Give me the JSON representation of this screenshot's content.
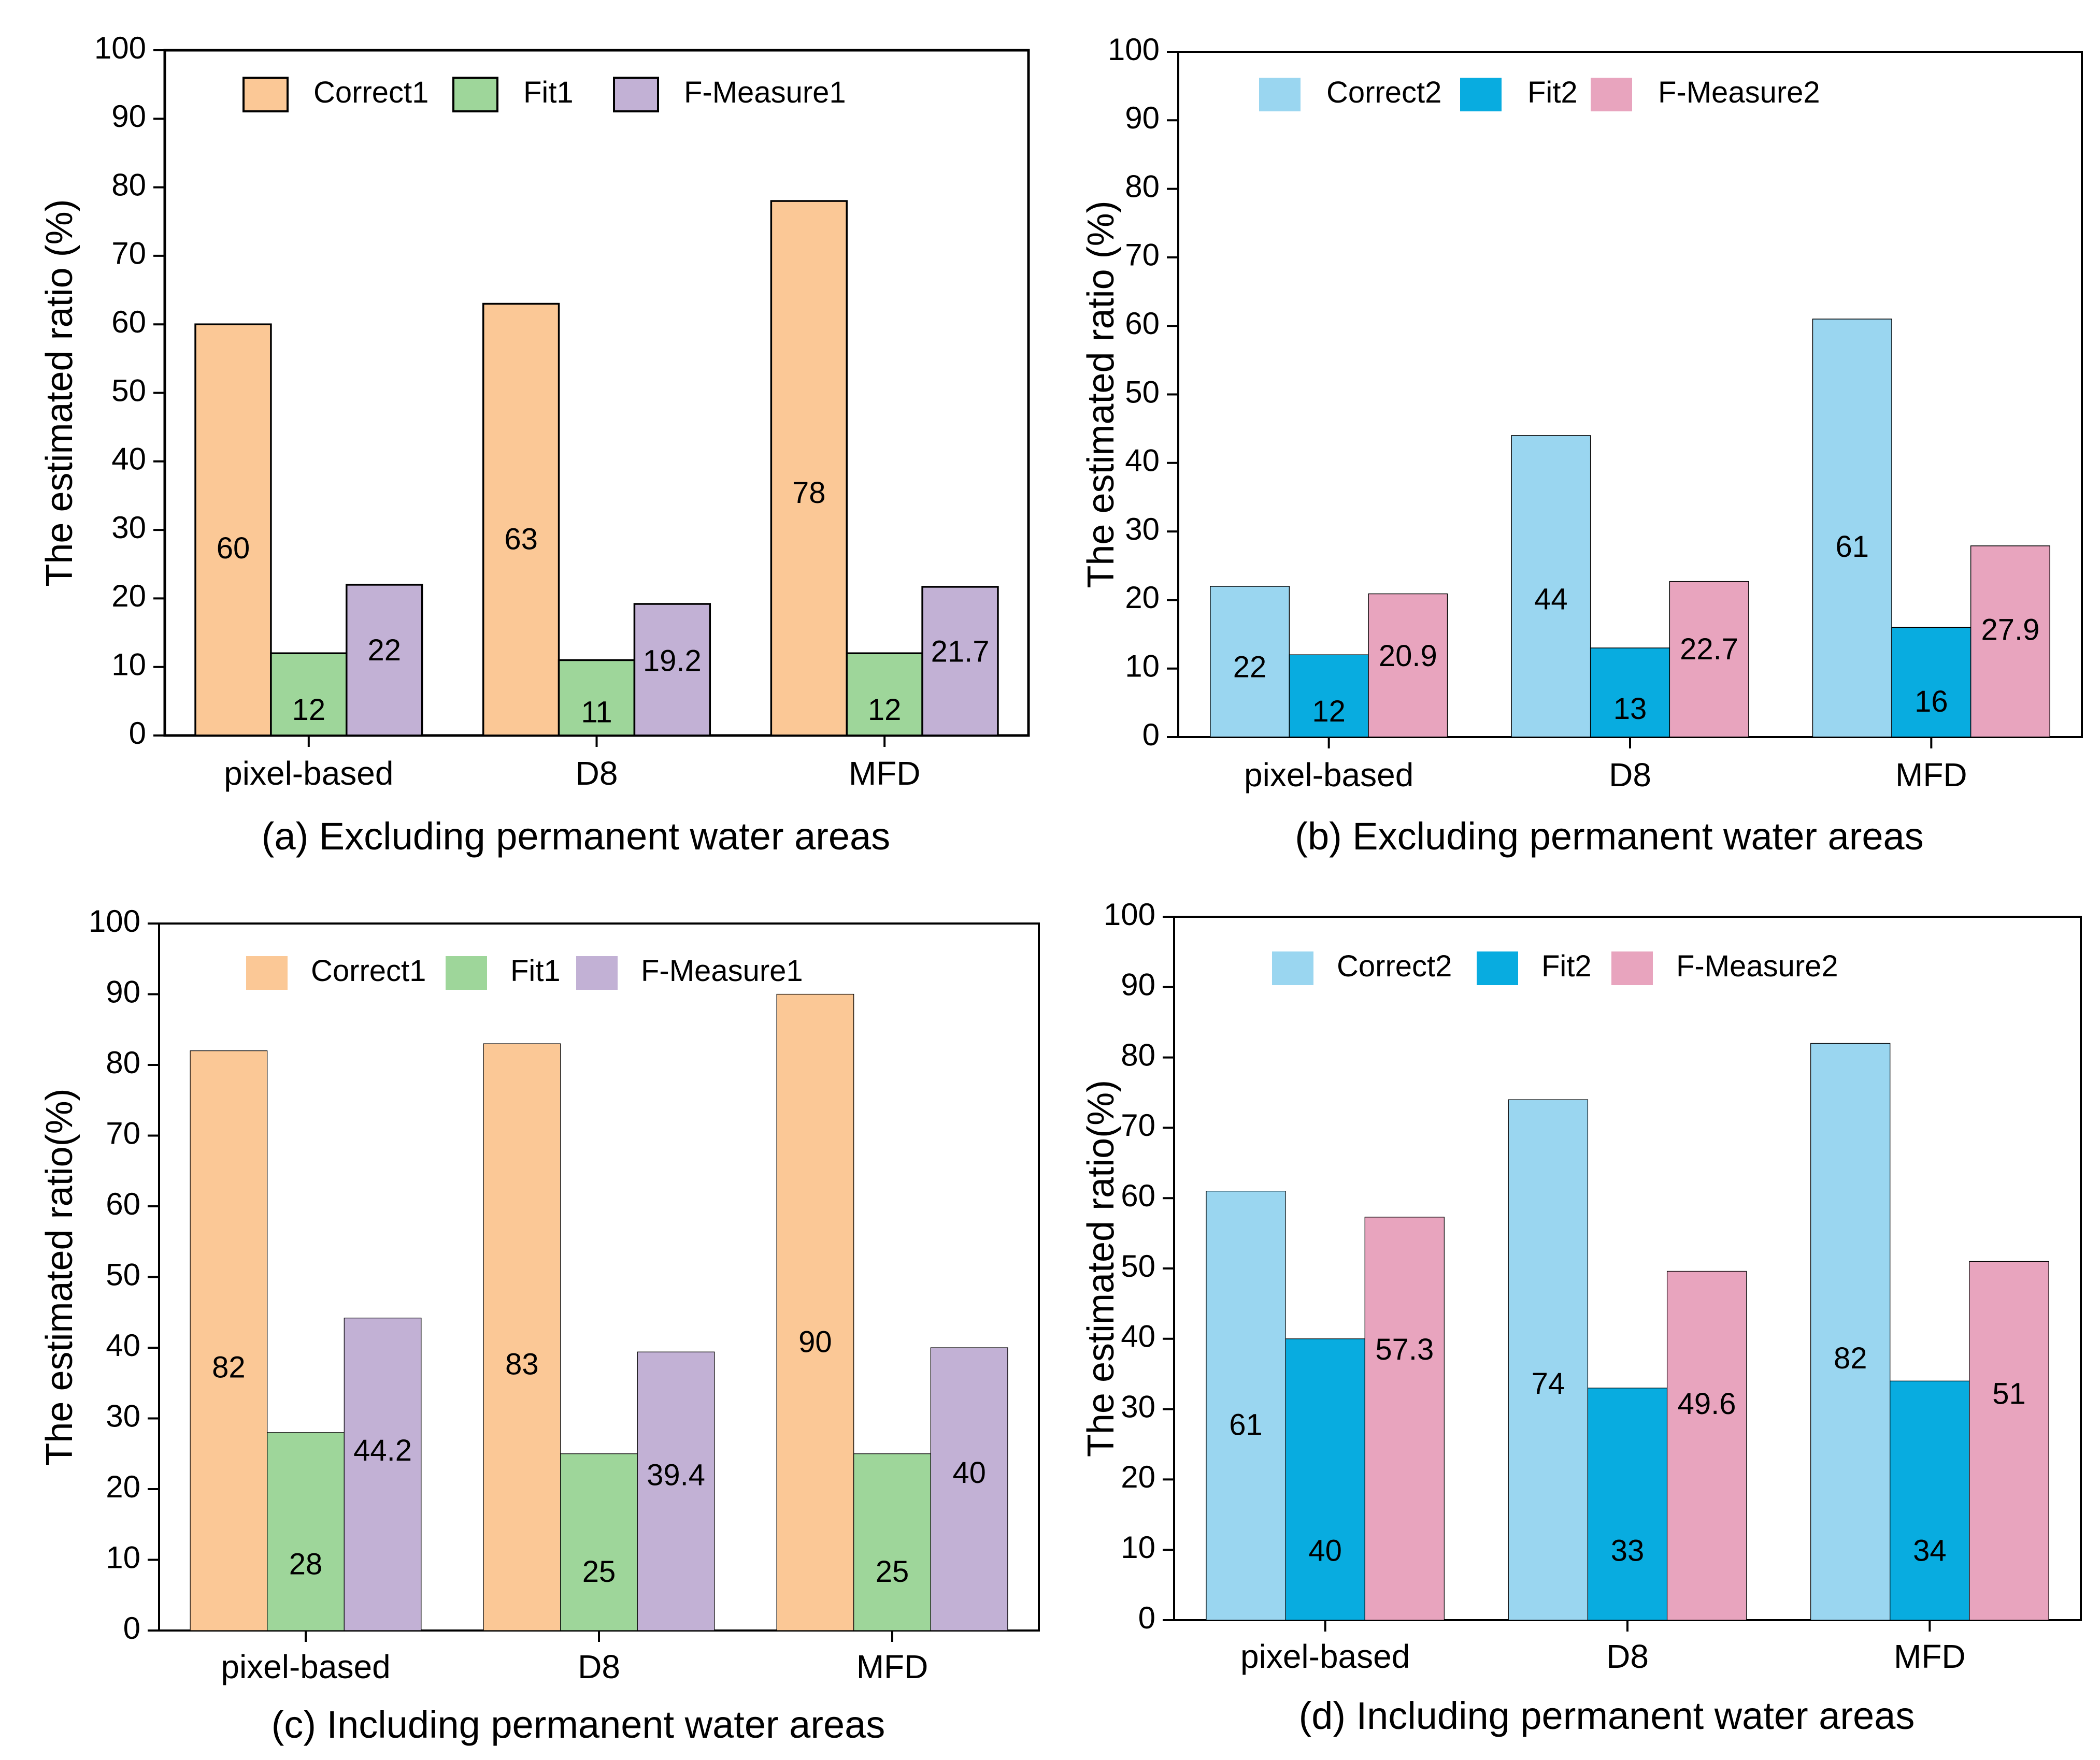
{
  "figure": {
    "panels_count": 4
  },
  "chart_data": [
    {
      "id": "a",
      "type": "bar",
      "caption": "(a) Excluding permanent water areas",
      "title": "",
      "xlabel": "",
      "ylabel": "The estimated ratio (%)",
      "ylim": [
        0,
        100
      ],
      "yticks": [
        0,
        10,
        20,
        30,
        40,
        50,
        60,
        70,
        80,
        90,
        100
      ],
      "grid": false,
      "legend_position": "top-left",
      "categories": [
        "pixel-based",
        "D8",
        "MFD"
      ],
      "series": [
        {
          "name": "Correct1",
          "color": "#FBC896",
          "values": [
            60,
            63,
            78
          ],
          "labels": [
            "60",
            "63",
            "78"
          ]
        },
        {
          "name": "Fit1",
          "color": "#9ED69A",
          "values": [
            12,
            11,
            12
          ],
          "labels": [
            "12",
            "11",
            "12"
          ]
        },
        {
          "name": "F-Measure1",
          "color": "#C2B1D5",
          "values": [
            22,
            19.2,
            21.7
          ],
          "labels": [
            "22",
            "19.2",
            "21.7"
          ]
        }
      ]
    },
    {
      "id": "b",
      "type": "bar",
      "caption": "(b) Excluding permanent water areas",
      "title": "",
      "xlabel": "",
      "ylabel": "The estimated ratio (%)",
      "ylim": [
        0,
        100
      ],
      "yticks": [
        0,
        10,
        20,
        30,
        40,
        50,
        60,
        70,
        80,
        90,
        100
      ],
      "grid": false,
      "legend_position": "top-left",
      "categories": [
        "pixel-based",
        "D8",
        "MFD"
      ],
      "series": [
        {
          "name": "Correct2",
          "color": "#9AD6F0",
          "values": [
            22,
            44,
            61
          ],
          "labels": [
            "22",
            "44",
            "61"
          ]
        },
        {
          "name": "Fit2",
          "color": "#08ACE0",
          "values": [
            12,
            13,
            16
          ],
          "labels": [
            "12",
            "13",
            "16"
          ]
        },
        {
          "name": "F-Measure2",
          "color": "#E8A4BE",
          "values": [
            20.9,
            22.7,
            27.9
          ],
          "labels": [
            "20.9",
            "22.7",
            "27.9"
          ]
        }
      ]
    },
    {
      "id": "c",
      "type": "bar",
      "caption": "(c) Including permanent water areas",
      "title": "",
      "xlabel": "",
      "ylabel": "The estimated ratio(%)",
      "ylim": [
        0,
        100
      ],
      "yticks": [
        0,
        10,
        20,
        30,
        40,
        50,
        60,
        70,
        80,
        90,
        100
      ],
      "grid": false,
      "legend_position": "top-left",
      "categories": [
        "pixel-based",
        "D8",
        "MFD"
      ],
      "series": [
        {
          "name": "Correct1",
          "color": "#FBC896",
          "values": [
            82,
            83,
            90
          ],
          "labels": [
            "82",
            "83",
            "90"
          ]
        },
        {
          "name": "Fit1",
          "color": "#9ED69A",
          "values": [
            28,
            25,
            25
          ],
          "labels": [
            "28",
            "25",
            "25"
          ]
        },
        {
          "name": "F-Measure1",
          "color": "#C2B1D5",
          "values": [
            44.2,
            39.4,
            40
          ],
          "labels": [
            "44.2",
            "39.4",
            "40"
          ]
        }
      ]
    },
    {
      "id": "d",
      "type": "bar",
      "caption": "(d) Including permanent water areas",
      "title": "",
      "xlabel": "",
      "ylabel": "The estimated ratio(%)",
      "ylim": [
        0,
        100
      ],
      "yticks": [
        0,
        10,
        20,
        30,
        40,
        50,
        60,
        70,
        80,
        90,
        100
      ],
      "grid": false,
      "legend_position": "top-left",
      "categories": [
        "pixel-based",
        "D8",
        "MFD"
      ],
      "series": [
        {
          "name": "Correct2",
          "color": "#9AD6F0",
          "values": [
            61,
            74,
            82
          ],
          "labels": [
            "61",
            "74",
            "82"
          ]
        },
        {
          "name": "Fit2",
          "color": "#08ACE0",
          "values": [
            40,
            33,
            34
          ],
          "labels": [
            "40",
            "33",
            "34"
          ]
        },
        {
          "name": "F-Measure2",
          "color": "#E8A4BE",
          "values": [
            57.3,
            49.6,
            51
          ],
          "labels": [
            "57.3",
            "49.6",
            "51"
          ]
        }
      ]
    }
  ]
}
